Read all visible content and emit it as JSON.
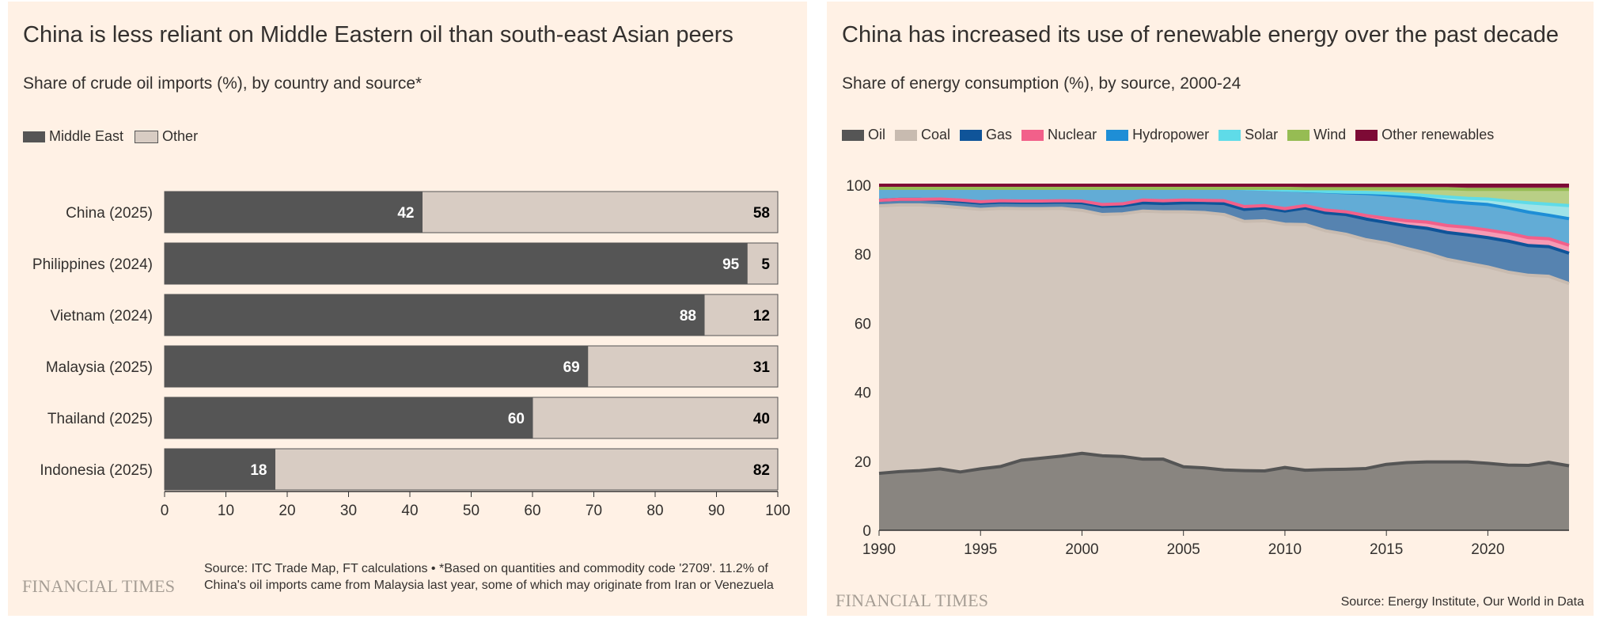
{
  "left": {
    "title": "China is less reliant on Middle Eastern oil than south-east Asian peers",
    "subtitle": "Share of crude oil imports (%), by country and source*",
    "logo": "FINANCIAL TIMES",
    "source": "Source: ITC Trade Map, FT calculations • *Based on quantities and commodity code '2709'. 11.2% of China's oil imports came from Malaysia last year, some of which may originate from Iran or Venezuela"
  },
  "right": {
    "title": "China has increased its use of renewable energy over the past decade",
    "subtitle": "Share of energy consumption (%), by source, 2000-24",
    "logo": "FINANCIAL TIMES",
    "source": "Source: Energy Institute, Our World in Data"
  },
  "chart_data": [
    {
      "type": "bar",
      "stacked": true,
      "orientation": "horizontal",
      "categories": [
        "China (2025)",
        "Philippines (2024)",
        "Vietnam (2024)",
        "Malaysia (2025)",
        "Thailand (2025)",
        "Indonesia (2025)"
      ],
      "series": [
        {
          "name": "Middle East",
          "color": "#555555",
          "values": [
            42,
            95,
            88,
            69,
            60,
            18
          ]
        },
        {
          "name": "Other",
          "color": "#d8ccc3",
          "values": [
            58,
            5,
            12,
            31,
            40,
            82
          ]
        }
      ],
      "xlim": [
        0,
        100
      ],
      "xticks": [
        "0",
        "10",
        "20",
        "30",
        "40",
        "50",
        "60",
        "70",
        "80",
        "90",
        "100"
      ],
      "legend": "top-left",
      "grid": false
    },
    {
      "type": "area",
      "stacked": true,
      "x": [
        1990,
        1991,
        1992,
        1993,
        1994,
        1995,
        1996,
        1997,
        1998,
        1999,
        2000,
        2001,
        2002,
        2003,
        2004,
        2005,
        2006,
        2007,
        2008,
        2009,
        2010,
        2011,
        2012,
        2013,
        2014,
        2015,
        2016,
        2017,
        2018,
        2019,
        2020,
        2021,
        2022,
        2023,
        2024
      ],
      "series": [
        {
          "name": "Oil",
          "color": "#555555",
          "fill": "#898580",
          "values": [
            16.5,
            17.0,
            17.3,
            17.8,
            16.9,
            17.8,
            18.5,
            20.3,
            20.9,
            21.5,
            22.3,
            21.6,
            21.4,
            20.6,
            20.6,
            18.4,
            18.1,
            17.5,
            17.3,
            17.2,
            18.2,
            17.4,
            17.6,
            17.7,
            17.9,
            19.1,
            19.6,
            19.8,
            19.8,
            19.8,
            19.4,
            18.9,
            18.8,
            19.7,
            18.7
          ]
        },
        {
          "name": "Coal",
          "color": "#c8bbb0",
          "fill": "#d2c6bc",
          "values": [
            77.5,
            77.3,
            77.0,
            76.2,
            76.6,
            75.2,
            74.8,
            72.9,
            72.3,
            71.8,
            70.4,
            69.9,
            70.3,
            71.9,
            71.7,
            73.9,
            74.0,
            74.0,
            72.2,
            72.5,
            70.5,
            71.2,
            69.2,
            68.1,
            66.3,
            64.1,
            62.1,
            60.5,
            58.7,
            57.6,
            56.9,
            55.9,
            55.1,
            53.9,
            52.8
          ]
        },
        {
          "name": "Gas",
          "color": "#0f5499",
          "fill": "#5683b0",
          "values": [
            1.6,
            1.6,
            1.6,
            1.7,
            1.8,
            1.8,
            1.8,
            1.8,
            1.8,
            1.8,
            2.2,
            2.4,
            2.4,
            2.4,
            2.4,
            2.6,
            2.8,
            3.2,
            3.5,
            3.7,
            3.8,
            4.8,
            5.2,
            5.7,
            6.0,
            6.0,
            6.5,
            7.2,
            7.8,
            8.2,
            8.5,
            9.0,
            8.6,
            8.6,
            8.8
          ]
        },
        {
          "name": "Nuclear",
          "color": "#f2608a",
          "fill": "#f59ab4",
          "values": [
            0,
            0,
            0,
            0.3,
            0.4,
            0.4,
            0.4,
            0.4,
            0.4,
            0.4,
            0.5,
            0.5,
            0.5,
            0.8,
            0.8,
            0.8,
            0.7,
            0.8,
            0.8,
            0.7,
            0.7,
            0.7,
            0.8,
            0.8,
            1.0,
            1.2,
            1.5,
            1.8,
            2.0,
            2.2,
            2.2,
            2.3,
            2.3,
            2.3,
            2.3
          ]
        },
        {
          "name": "Hydropower",
          "color": "#1e8ed6",
          "fill": "#62acd6",
          "values": [
            3.5,
            3.2,
            3.2,
            3.1,
            3.4,
            3.9,
            3.6,
            3.7,
            3.7,
            3.6,
            3.7,
            4.7,
            4.5,
            3.4,
            3.6,
            3.4,
            3.5,
            3.6,
            5.2,
            4.7,
            5.4,
            4.2,
            5.3,
            5.5,
            6.4,
            6.8,
            7.0,
            6.7,
            7.0,
            7.0,
            7.4,
            7.3,
            7.4,
            6.8,
            7.7
          ]
        },
        {
          "name": "Solar",
          "color": "#5fdbe8",
          "fill": "#9fe3e8",
          "values": [
            0,
            0,
            0,
            0,
            0,
            0,
            0,
            0,
            0,
            0,
            0,
            0,
            0,
            0,
            0,
            0,
            0,
            0,
            0,
            0,
            0,
            0.1,
            0.1,
            0.2,
            0.3,
            0.5,
            0.7,
            1.0,
            1.3,
            1.4,
            1.6,
            2.0,
            2.7,
            3.2,
            3.8
          ]
        },
        {
          "name": "Wind",
          "color": "#96bc53",
          "fill": "#b9cf86",
          "values": [
            0,
            0,
            0,
            0,
            0,
            0,
            0,
            0,
            0,
            0,
            0,
            0,
            0,
            0,
            0,
            0,
            0,
            0,
            0.1,
            0.3,
            0.5,
            0.6,
            0.8,
            1.0,
            1.1,
            1.3,
            1.6,
            2.0,
            2.4,
            2.6,
            2.8,
            3.4,
            3.9,
            4.3,
            4.7
          ]
        },
        {
          "name": "Other renewables",
          "color": "#7d0a35",
          "fill": "#8a1a43",
          "values": [
            0.9,
            0.9,
            0.9,
            0.9,
            0.9,
            0.9,
            0.9,
            0.9,
            0.9,
            0.9,
            0.9,
            0.9,
            0.9,
            0.9,
            0.9,
            0.9,
            0.9,
            0.9,
            0.9,
            0.9,
            0.9,
            1.0,
            1.0,
            1.0,
            1.0,
            1.0,
            1.0,
            1.0,
            1.0,
            1.2,
            1.2,
            1.2,
            1.2,
            1.2,
            1.2
          ]
        }
      ],
      "xlim": [
        1990,
        2024
      ],
      "ylim": [
        0,
        100
      ],
      "xticks": [
        "1990",
        "1995",
        "2000",
        "2005",
        "2010",
        "2015",
        "2020"
      ],
      "yticks": [
        "0",
        "20",
        "40",
        "60",
        "80",
        "100"
      ],
      "legend": "top-left",
      "grid": true
    }
  ]
}
